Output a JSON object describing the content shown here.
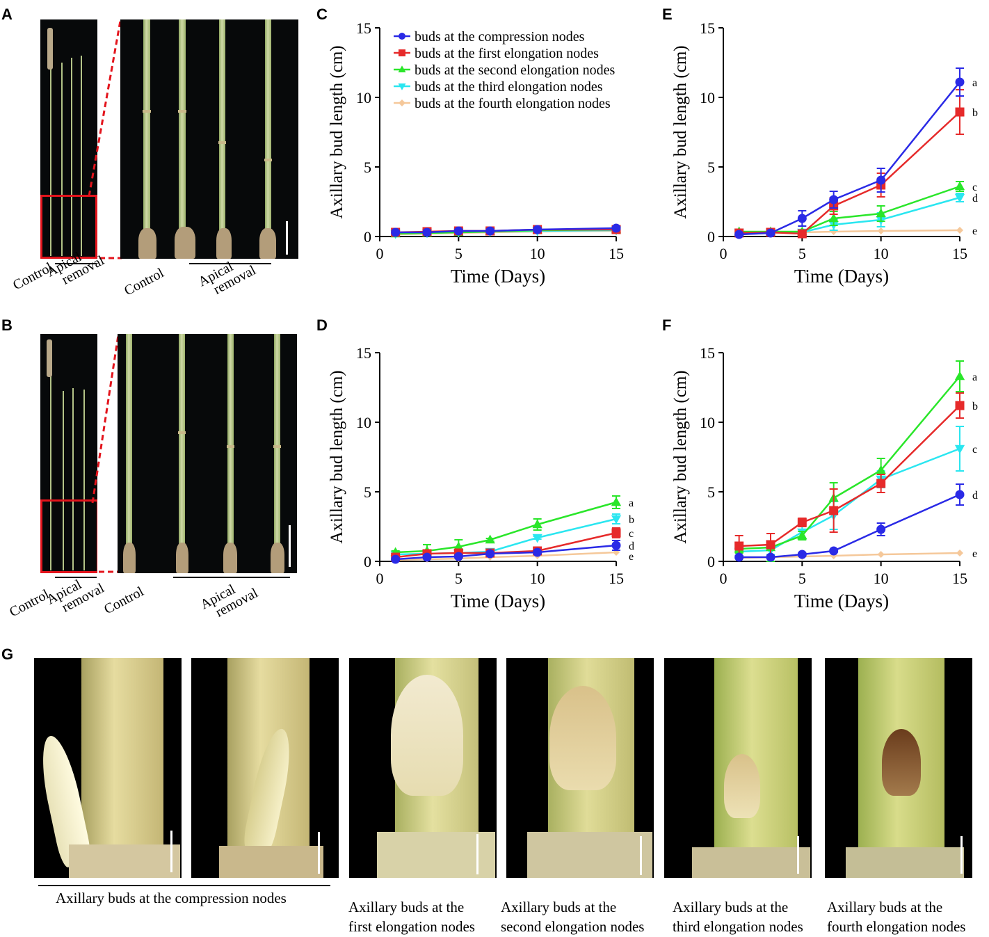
{
  "panel_labels": {
    "A": "A",
    "B": "B",
    "C": "C",
    "D": "D",
    "E": "E",
    "F": "F",
    "G": "G"
  },
  "photo_labels": {
    "a_control_small": "Control",
    "a_apical_small_1": "Apical",
    "a_apical_small_2": "removal",
    "a_control_large": "Control",
    "a_apical_large_1": "Apical",
    "a_apical_large_2": "removal",
    "b_control_small": "Control",
    "b_apical_small_1": "Apical",
    "b_apical_small_2": "removal",
    "b_control_large": "Control",
    "b_apical_large_1": "Apical",
    "b_apical_large_2": "removal"
  },
  "colors": {
    "compression": "#2a2ae6",
    "first": "#e62a2a",
    "second": "#2ae62a",
    "third": "#2ae6f0",
    "fourth": "#f5c89a",
    "red_box": "#e3141c"
  },
  "chart_data": [
    {
      "panel": "C",
      "type": "line",
      "xlabel": "Time (Days)",
      "ylabel": "Axillary bud length (cm)",
      "xlim": [
        0,
        15
      ],
      "ylim": [
        0,
        15
      ],
      "xticks": [
        0,
        5,
        10,
        15
      ],
      "yticks": [
        0,
        5,
        10,
        15
      ],
      "legend": [
        "buds at the compression nodes",
        "buds at the first elongation nodes",
        "buds at the second elongation nodes",
        "buds at the third elongation nodes",
        "buds at the fourth elongation nodes"
      ],
      "x": [
        1,
        3,
        5,
        7,
        10,
        15
      ],
      "series": [
        {
          "name": "buds at the compression nodes",
          "values": [
            0.3,
            0.3,
            0.4,
            0.4,
            0.5,
            0.6
          ],
          "err": [
            0.1,
            0.1,
            0.1,
            0.1,
            0.1,
            0.1
          ]
        },
        {
          "name": "buds at the first elongation nodes",
          "values": [
            0.3,
            0.35,
            0.4,
            0.4,
            0.5,
            0.5
          ],
          "err": [
            0.1,
            0.1,
            0.1,
            0.1,
            0.1,
            0.1
          ]
        },
        {
          "name": "buds at the second elongation nodes",
          "values": [
            0.2,
            0.25,
            0.3,
            0.35,
            0.45,
            0.5
          ],
          "err": [
            0.05,
            0.05,
            0.05,
            0.05,
            0.05,
            0.05
          ]
        },
        {
          "name": "buds at the third elongation nodes",
          "values": [
            0.2,
            0.25,
            0.3,
            0.35,
            0.4,
            0.45
          ],
          "err": [
            0.05,
            0.05,
            0.05,
            0.05,
            0.05,
            0.05
          ]
        },
        {
          "name": "buds at the fourth elongation nodes",
          "values": [
            0.15,
            0.2,
            0.25,
            0.3,
            0.35,
            0.4
          ],
          "err": [
            0.05,
            0.05,
            0.05,
            0.05,
            0.05,
            0.05
          ]
        }
      ],
      "letters": []
    },
    {
      "panel": "D",
      "type": "line",
      "xlabel": "Time (Days)",
      "ylabel": "Axillary bud length (cm)",
      "xlim": [
        0,
        15
      ],
      "ylim": [
        0,
        15
      ],
      "xticks": [
        0,
        5,
        10,
        15
      ],
      "yticks": [
        0,
        5,
        10,
        15
      ],
      "x": [
        1,
        3,
        5,
        7,
        10,
        15
      ],
      "series": [
        {
          "name": "buds at the compression nodes",
          "values": [
            0.15,
            0.3,
            0.35,
            0.55,
            0.65,
            1.15
          ],
          "err": [
            0.1,
            0.1,
            0.1,
            0.1,
            0.1,
            0.35
          ]
        },
        {
          "name": "buds at the first elongation nodes",
          "values": [
            0.3,
            0.55,
            0.6,
            0.6,
            0.75,
            2.05
          ],
          "err": [
            0.1,
            0.1,
            0.1,
            0.1,
            0.1,
            0.35
          ]
        },
        {
          "name": "buds at the second elongation nodes",
          "values": [
            0.65,
            0.75,
            1.05,
            1.55,
            2.65,
            4.25
          ],
          "err": [
            0.1,
            0.45,
            0.5,
            0.1,
            0.4,
            0.45
          ]
        },
        {
          "name": "buds at the third elongation nodes",
          "values": [
            0.5,
            0.55,
            0.6,
            0.7,
            1.7,
            3.05
          ],
          "err": [
            0.1,
            0.1,
            0.1,
            0.1,
            0.1,
            0.35
          ]
        },
        {
          "name": "buds at the fourth elongation nodes",
          "values": [
            0.1,
            0.15,
            0.2,
            0.3,
            0.4,
            0.65
          ],
          "err": [
            0.05,
            0.05,
            0.05,
            0.05,
            0.05,
            0.05
          ]
        }
      ],
      "letters": [
        "a",
        "b",
        "c",
        "d",
        "e"
      ]
    },
    {
      "panel": "E",
      "type": "line",
      "xlabel": "Time (Days)",
      "ylabel": "Axillary bud length (cm)",
      "xlim": [
        0,
        15
      ],
      "ylim": [
        0,
        15
      ],
      "xticks": [
        0,
        5,
        10,
        15
      ],
      "yticks": [
        0,
        5,
        10,
        15
      ],
      "x": [
        1,
        3,
        5,
        7,
        10,
        15
      ],
      "series": [
        {
          "name": "buds at the compression nodes",
          "values": [
            0.15,
            0.25,
            1.3,
            2.65,
            4.05,
            11.1
          ],
          "err": [
            0.1,
            0.1,
            0.55,
            0.6,
            0.85,
            1.0
          ]
        },
        {
          "name": "buds at the first elongation nodes",
          "values": [
            0.25,
            0.3,
            0.2,
            2.2,
            3.7,
            8.95
          ],
          "err": [
            0.1,
            0.1,
            0.1,
            0.6,
            0.85,
            1.6
          ]
        },
        {
          "name": "buds at the second elongation nodes",
          "values": [
            0.35,
            0.35,
            0.35,
            1.3,
            1.65,
            3.6
          ],
          "err": [
            0.1,
            0.1,
            0.1,
            0.5,
            0.55,
            0.35
          ]
        },
        {
          "name": "buds at the third elongation nodes",
          "values": [
            0.3,
            0.3,
            0.3,
            0.85,
            1.2,
            2.8
          ],
          "err": [
            0.1,
            0.1,
            0.1,
            0.4,
            0.5,
            0.3
          ]
        },
        {
          "name": "buds at the fourth elongation nodes",
          "values": [
            0.15,
            0.25,
            0.3,
            0.35,
            0.4,
            0.45
          ],
          "err": [
            0.05,
            0.05,
            0.05,
            0.05,
            0.05,
            0.05
          ]
        }
      ],
      "letters": [
        "a",
        "b",
        "c",
        "d",
        "e"
      ]
    },
    {
      "panel": "F",
      "type": "line",
      "xlabel": "Time (Days)",
      "ylabel": "Axillary bud length (cm)",
      "xlim": [
        0,
        15
      ],
      "ylim": [
        0,
        15
      ],
      "xticks": [
        0,
        5,
        10,
        15
      ],
      "yticks": [
        0,
        5,
        10,
        15
      ],
      "x": [
        1,
        3,
        5,
        7,
        10,
        15
      ],
      "series": [
        {
          "name": "buds at the compression nodes",
          "values": [
            0.3,
            0.3,
            0.5,
            0.75,
            2.3,
            4.8
          ],
          "err": [
            0.1,
            0.1,
            0.1,
            0.1,
            0.45,
            0.75
          ]
        },
        {
          "name": "buds at the first elongation nodes",
          "values": [
            1.1,
            1.2,
            2.8,
            3.65,
            5.6,
            11.2
          ],
          "err": [
            0.75,
            0.8,
            0.3,
            1.55,
            0.65,
            0.9
          ]
        },
        {
          "name": "buds at the second elongation nodes",
          "values": [
            0.9,
            1.0,
            1.85,
            4.55,
            6.55,
            13.3
          ],
          "err": [
            0.3,
            1.0,
            0.3,
            1.1,
            0.85,
            1.1
          ]
        },
        {
          "name": "buds at the third elongation nodes",
          "values": [
            0.7,
            0.8,
            2.1,
            3.3,
            5.9,
            8.1
          ],
          "err": [
            0.3,
            0.3,
            0.5,
            1.0,
            0.6,
            1.6
          ]
        },
        {
          "name": "buds at the fourth elongation nodes",
          "values": [
            0.25,
            0.3,
            0.35,
            0.4,
            0.5,
            0.6
          ],
          "err": [
            0.05,
            0.05,
            0.05,
            0.05,
            0.05,
            0.05
          ]
        }
      ],
      "letters": [
        "a",
        "b",
        "c",
        "d",
        "e"
      ]
    }
  ],
  "g_captions": {
    "compression": "Axillary buds at the compression nodes",
    "first_1": "Axillary buds at the",
    "first_2": "first elongation nodes",
    "second_1": "Axillary buds at the",
    "second_2": "second elongation nodes",
    "third_1": "Axillary buds at the",
    "third_2": "third elongation nodes",
    "fourth_1": "Axillary buds at the",
    "fourth_2": "fourth elongation nodes"
  }
}
